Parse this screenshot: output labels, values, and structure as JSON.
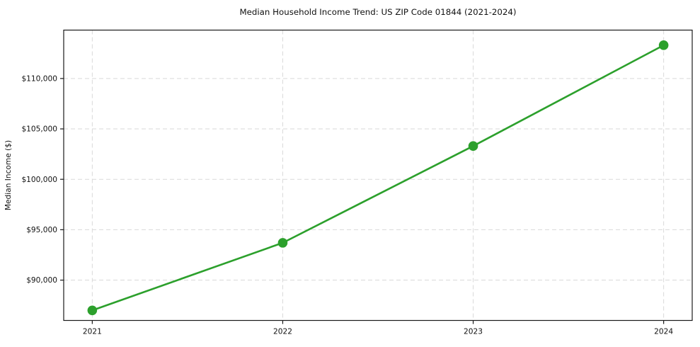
{
  "chart_data": {
    "type": "line",
    "title": "Median Household Income Trend: US ZIP Code 01844 (2021-2024)",
    "xlabel": "",
    "ylabel": "Median Income ($)",
    "x": [
      2021,
      2022,
      2023,
      2024
    ],
    "values": [
      87000,
      93700,
      103300,
      113300
    ],
    "xticks": [
      2021,
      2022,
      2023,
      2024
    ],
    "xtick_labels": [
      "2021",
      "2022",
      "2023",
      "2024"
    ],
    "yticks": [
      90000,
      95000,
      100000,
      105000,
      110000
    ],
    "ytick_labels": [
      "$90,000",
      "$95,000",
      "$100,000",
      "$105,000",
      "$110,000"
    ],
    "xlim": [
      2020.85,
      2024.15
    ],
    "ylim": [
      86000,
      114800
    ],
    "grid": true,
    "grid_style": "dashed",
    "legend": false,
    "colors": {
      "line": "#2ca02c",
      "marker": "#2ca02c",
      "grid": "#d9d9d9",
      "spine": "#1a1a1a",
      "tick": "#1a1a1a",
      "background": "#ffffff"
    }
  }
}
